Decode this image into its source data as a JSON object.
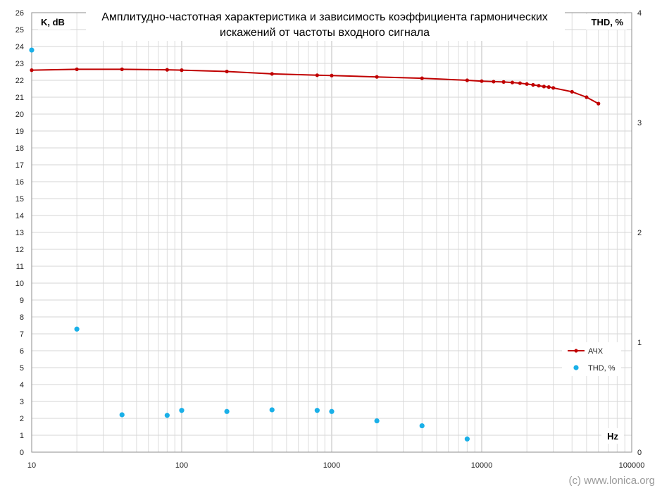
{
  "chart_data": {
    "type": "line",
    "title_lines": [
      "Амплитудно-частотная характеристика и зависимость коэффициента гармонических",
      "искажений от частоты входного сигнала"
    ],
    "xlabel": "Hz",
    "ylabel_left": "K, dB",
    "ylabel_right": "THD, %",
    "x_scale": "log",
    "xlim": [
      10,
      100000
    ],
    "x_ticks": [
      10,
      100,
      1000,
      10000,
      100000
    ],
    "ylim_left": [
      0,
      26
    ],
    "y_ticks_left": [
      0,
      1,
      2,
      3,
      4,
      5,
      6,
      7,
      8,
      9,
      10,
      11,
      12,
      13,
      14,
      15,
      16,
      17,
      18,
      19,
      20,
      21,
      22,
      23,
      24,
      25,
      26
    ],
    "ylim_right": [
      0,
      4
    ],
    "y_ticks_right": [
      0,
      1,
      2,
      3,
      4
    ],
    "grid": true,
    "legend_position": "right",
    "series": [
      {
        "name": "АЧХ",
        "axis": "left",
        "style": "line-markers",
        "color": "#c00000",
        "x": [
          10,
          20,
          40,
          80,
          100,
          200,
          400,
          800,
          1000,
          2000,
          4000,
          8000,
          10000,
          12000,
          14000,
          16000,
          18000,
          20000,
          22000,
          24000,
          26000,
          28000,
          30000,
          40000,
          50000,
          60000
        ],
        "y": [
          22.6,
          22.65,
          22.65,
          22.62,
          22.6,
          22.52,
          22.38,
          22.3,
          22.28,
          22.2,
          22.12,
          22.0,
          21.95,
          21.92,
          21.9,
          21.87,
          21.83,
          21.78,
          21.73,
          21.68,
          21.63,
          21.6,
          21.55,
          21.32,
          21.0,
          20.62
        ]
      },
      {
        "name": "THD, %",
        "axis": "right",
        "style": "markers",
        "color": "#1ab0e8",
        "x": [
          10,
          20,
          40,
          80,
          100,
          200,
          400,
          800,
          1000,
          2000,
          4000,
          8000
        ],
        "y": [
          3.66,
          1.12,
          0.34,
          0.335,
          0.38,
          0.37,
          0.385,
          0.38,
          0.37,
          0.285,
          0.24,
          0.12
        ]
      }
    ]
  },
  "watermark": "(c) www.lonica.org"
}
